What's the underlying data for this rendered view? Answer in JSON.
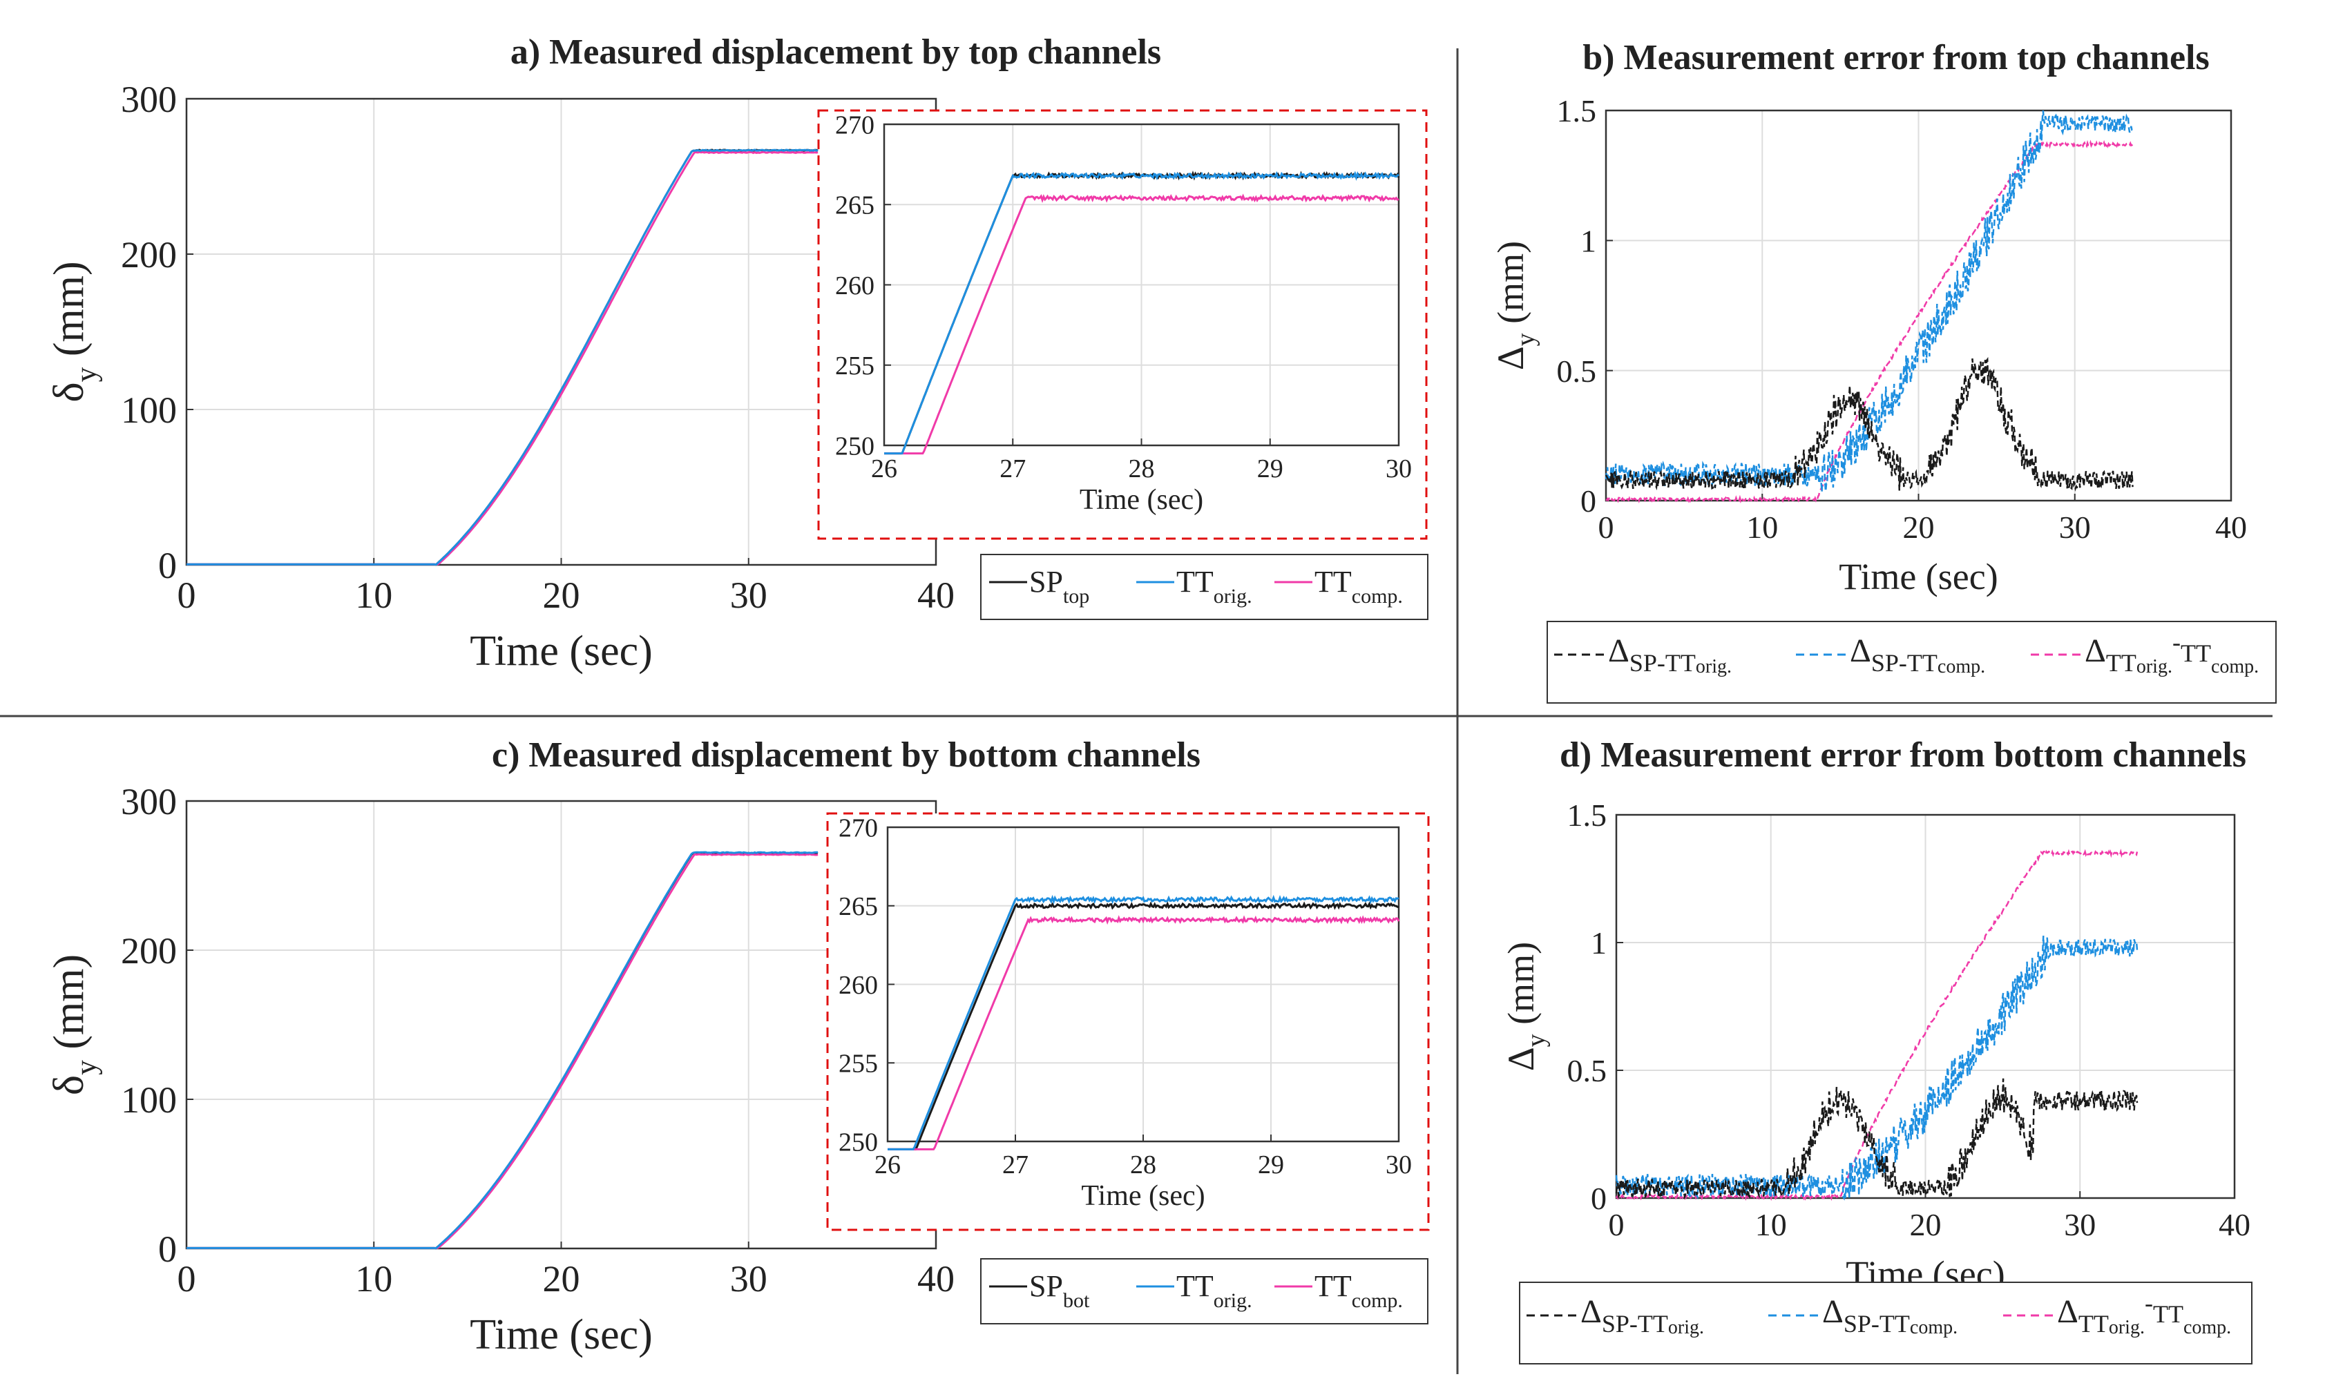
{
  "colors": {
    "sp": "#1a1a1a",
    "orig": "#1e8fe0",
    "comp": "#f03aa8",
    "inset_border": "#e01010",
    "axes": "#333333",
    "grid": "#dddddd"
  },
  "labels": {
    "time_sec": "Time (sec)",
    "delta": "δ",
    "Delta": "Δ",
    "sub_y": "y",
    "unit_mm": "(mm)",
    "SP": "SP",
    "TT": "TT",
    "dash_part": "-",
    "sub_top": "top",
    "sub_bot": "bot",
    "sub_orig": "orig.",
    "sub_comp": "comp.",
    "sub_sptt": "SP-TT"
  },
  "chart_data": [
    {
      "id": "a",
      "type": "line",
      "title": "a) Measured displacement by top channels",
      "xlabel": "Time (sec)",
      "ylabel": "δy (mm)",
      "xlim": [
        0,
        40
      ],
      "ylim": [
        0,
        300
      ],
      "xticks": [
        "0",
        "10",
        "20",
        "30",
        "40"
      ],
      "yticks": [
        "0",
        "100",
        "200",
        "300"
      ],
      "series": [
        {
          "name": "SPtop",
          "t0": 13.3,
          "t1": 27.0,
          "tend": 33.7,
          "final": 266.8
        },
        {
          "name": "TTorig.",
          "t0": 13.3,
          "t1": 27.0,
          "tend": 33.7,
          "final": 266.8
        },
        {
          "name": "TTcomp.",
          "t0": 13.4,
          "t1": 27.1,
          "tend": 33.7,
          "final": 265.4
        }
      ],
      "inset": {
        "xlabel": "Time (sec)",
        "xlim": [
          26,
          30
        ],
        "ylim": [
          250,
          270
        ],
        "xticks": [
          "26",
          "27",
          "28",
          "29",
          "30"
        ],
        "yticks": [
          "250",
          "255",
          "260",
          "265",
          "270"
        ]
      }
    },
    {
      "id": "b",
      "type": "line",
      "title": "b) Measurement error from top channels",
      "xlabel": "Time (sec)",
      "ylabel": "Δy (mm)",
      "xlim": [
        0,
        40
      ],
      "ylim": [
        0,
        1.5
      ],
      "xticks": [
        "0",
        "10",
        "20",
        "30",
        "40"
      ],
      "yticks": [
        "0",
        "0.5",
        "1",
        "1.5"
      ],
      "series": [
        {
          "name": "ΔSP-TTorig.",
          "bumps": [
            [
              15.5,
              0.3
            ],
            [
              24,
              0.42
            ]
          ],
          "base": 0.08
        },
        {
          "name": "ΔSP-TTcomp.",
          "start": 13.8,
          "final": 1.45,
          "base": 0.1
        },
        {
          "name": "ΔTTorig.-TTcomp.",
          "start": 13.5,
          "final": 1.37
        }
      ]
    },
    {
      "id": "c",
      "type": "line",
      "title": "c) Measured displacement by bottom channels",
      "xlabel": "Time (sec)",
      "ylabel": "δy (mm)",
      "xlim": [
        0,
        40
      ],
      "ylim": [
        0,
        300
      ],
      "xticks": [
        "0",
        "10",
        "20",
        "30",
        "40"
      ],
      "yticks": [
        "0",
        "100",
        "200",
        "300"
      ],
      "series": [
        {
          "name": "SPbot",
          "t0": 13.3,
          "t1": 27.0,
          "tend": 33.7,
          "final": 265.0
        },
        {
          "name": "TTorig.",
          "t0": 13.3,
          "t1": 27.0,
          "tend": 33.7,
          "final": 265.4
        },
        {
          "name": "TTcomp.",
          "t0": 13.4,
          "t1": 27.1,
          "tend": 33.7,
          "final": 264.1
        }
      ],
      "inset": {
        "xlabel": "Time (sec)",
        "xlim": [
          26,
          30
        ],
        "ylim": [
          250,
          270
        ],
        "xticks": [
          "26",
          "27",
          "28",
          "29",
          "30"
        ],
        "yticks": [
          "250",
          "255",
          "260",
          "265",
          "270"
        ]
      }
    },
    {
      "id": "d",
      "type": "line",
      "title": "d) Measurement error from bottom channels",
      "xlabel": "Time (sec)",
      "ylabel": "Δy (mm)",
      "xlim": [
        0,
        40
      ],
      "ylim": [
        0,
        1.5
      ],
      "xticks": [
        "0",
        "10",
        "20",
        "30",
        "40"
      ],
      "yticks": [
        "0",
        "0.5",
        "1",
        "1.5"
      ],
      "series": [
        {
          "name": "ΔSP-TTorig.",
          "bumps": [
            [
              14.5,
              0.35
            ],
            [
              25,
              0.35
            ]
          ],
          "base": 0.04,
          "final": 0.38
        },
        {
          "name": "ΔSP-TTcomp.",
          "start": 14.5,
          "final": 0.98,
          "base": 0.05
        },
        {
          "name": "ΔTTorig.-TTcomp.",
          "start": 14.5,
          "final": 1.35
        }
      ]
    }
  ]
}
